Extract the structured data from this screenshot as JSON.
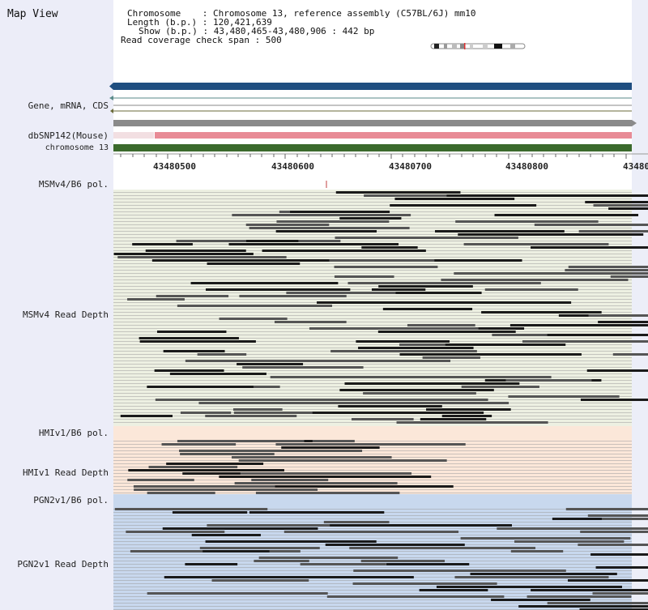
{
  "header": {
    "title": "Map View",
    "chromosome_key": "Chromosome",
    "chromosome_val": "Chromosome 13, reference assembly (C57BL/6J) mm10",
    "length_key": "Length (b.p.)",
    "length_val": "120,421,639",
    "show_key": "Show (b.p.)",
    "show_val": "43,480,465-43,480,906 : 442 bp",
    "coverage_key": "Read coverage check span",
    "coverage_val": "500"
  },
  "tracks": {
    "gene_label": "Gene, mRNA, CDS",
    "dbsnp_label": "dbSNP142(Mouse)",
    "chrom_label": "chromosome 13",
    "msm_pol_label": "MSMv4/B6 pol.",
    "msm_depth_label": "MSMv4 Read Depth",
    "hmi_pol_label": "HMIv1/B6 pol.",
    "hmi_depth_label": "HMIv1 Read Depth",
    "pgn_pol_label": "PGN2v1/B6 pol.",
    "pgn_depth_label": "PGN2v1 Read Depth"
  },
  "ruler": {
    "ticks": [
      "43480500",
      "43480600",
      "43480700",
      "43480800",
      "43480"
    ]
  },
  "colors": {
    "gene_bar": "#1f4e80",
    "snp_bar": "#e88b96",
    "chrom_bar": "#3b6a2c",
    "msm_bg": "#edf0e2",
    "hmi_bg": "#fbe7d9",
    "pgn_bg": "#c8d8ee",
    "read_dark": "#1a1a1a",
    "read_mid": "#555555"
  },
  "icons": {
    "chromosome_ideogram": "chromosome-ideogram-icon"
  }
}
